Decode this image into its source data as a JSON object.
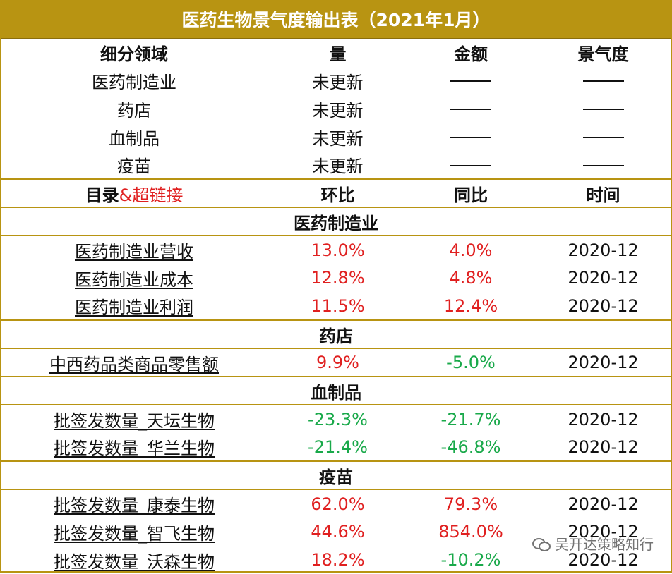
{
  "title": "医药生物景气度输出表（2021年1月）",
  "summary_header": [
    "细分领域",
    "量",
    "金额",
    "景气度"
  ],
  "summary_rows": [
    {
      "field": "医药制造业",
      "volume": "未更新"
    },
    {
      "field": "药店",
      "volume": "未更新"
    },
    {
      "field": "血制品",
      "volume": "未更新"
    },
    {
      "field": "疫苗",
      "volume": "未更新"
    }
  ],
  "detail_header": {
    "col1_a": "目录",
    "col1_b": "&超链接",
    "col2": "环比",
    "col3": "同比",
    "col4": "时间"
  },
  "sections": [
    {
      "name": "医药制造业",
      "rows": [
        {
          "label": "医药制造业营收",
          "mom": "13.0%",
          "yoy": "4.0%",
          "date": "2020-12"
        },
        {
          "label": "医药制造业成本",
          "mom": "12.8%",
          "yoy": "4.8%",
          "date": "2020-12"
        },
        {
          "label": "医药制造业利润",
          "mom": "11.5%",
          "yoy": "12.4%",
          "date": "2020-12"
        }
      ]
    },
    {
      "name": "药店",
      "rows": [
        {
          "label": "中西药品类商品零售额",
          "mom": "9.9%",
          "yoy": "-5.0%",
          "date": "2020-12"
        }
      ]
    },
    {
      "name": "血制品",
      "rows": [
        {
          "label": "批签发数量_天坛生物",
          "mom": "-23.3%",
          "yoy": "-21.7%",
          "date": "2020-12"
        },
        {
          "label": "批签发数量_华兰生物",
          "mom": "-21.4%",
          "yoy": "-46.8%",
          "date": "2020-12"
        }
      ]
    },
    {
      "name": "疫苗",
      "rows": [
        {
          "label": "批签发数量_康泰生物",
          "mom": "62.0%",
          "yoy": "79.3%",
          "date": "2020-12"
        },
        {
          "label": "批签发数量_智飞生物",
          "mom": "44.6%",
          "yoy": "854.0%",
          "date": "2020-12"
        },
        {
          "label": "批签发数量_沃森生物",
          "mom": "18.2%",
          "yoy": "-10.2%",
          "date": "2020-12"
        }
      ]
    }
  ],
  "watermark": "吴开达策略知行",
  "colors": {
    "header_bg": "#b89412",
    "positive": "#e02020",
    "negative": "#19a94a"
  }
}
